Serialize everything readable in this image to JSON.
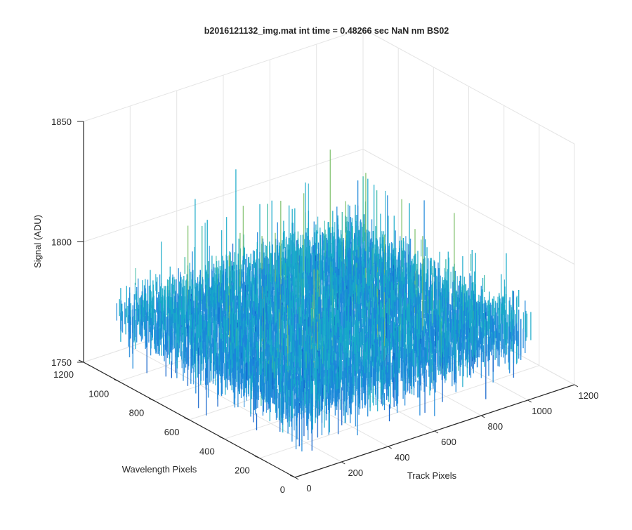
{
  "chart_data": {
    "type": "surface",
    "title": "b2016121132_img.mat int time = 0.48266 sec  NaN nm BS02",
    "xlabel": "Track Pixels",
    "ylabel": "Wavelength Pixels",
    "zlabel": "Signal (ADU)",
    "xlim": [
      0,
      1200
    ],
    "ylim": [
      0,
      1200
    ],
    "zlim": [
      1750,
      1850
    ],
    "x_ticks": [
      "0",
      "200",
      "400",
      "600",
      "800",
      "1000",
      "1200"
    ],
    "y_ticks": [
      "0",
      "200",
      "400",
      "600",
      "800",
      "1000",
      "1200"
    ],
    "z_ticks": [
      "1750",
      "1800",
      "1850"
    ],
    "grid": true,
    "data_extent": {
      "x": [
        0,
        1024
      ],
      "y": [
        0,
        1024
      ]
    },
    "signal_mean": 1778,
    "signal_noise_range": [
      1755,
      1845
    ],
    "colormap": "parula",
    "colors": [
      "#0c5fc9",
      "#1a86d9",
      "#16a9c8",
      "#33b7a0",
      "#7cbf6a",
      "#c4bb3c"
    ]
  }
}
